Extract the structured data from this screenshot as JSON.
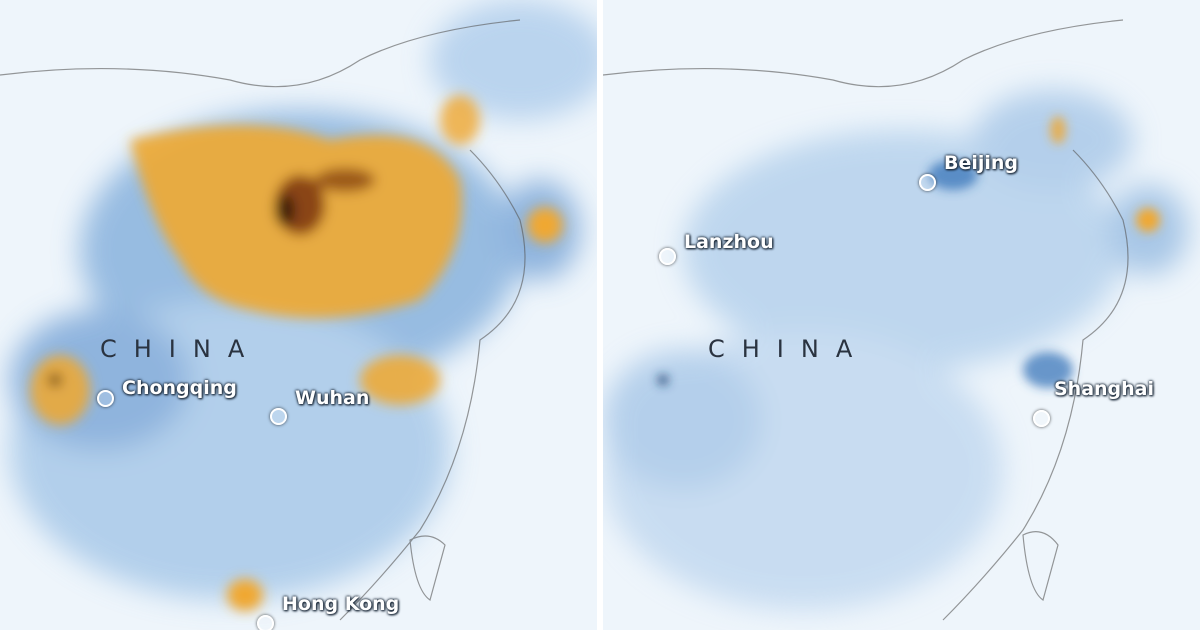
{
  "panels": [
    {
      "country_label": "CHINA",
      "cities": [
        {
          "name": "Chongqing"
        },
        {
          "name": "Wuhan"
        },
        {
          "name": "Hong Kong"
        }
      ]
    },
    {
      "country_label": "CHINA",
      "cities": [
        {
          "name": "Beijing"
        },
        {
          "name": "Lanzhou"
        },
        {
          "name": "Shanghai"
        }
      ]
    }
  ],
  "colors": {
    "background": "#eef5fb",
    "low_concentration": "#7aa9d9",
    "medium_concentration": "#2f6db5",
    "high_concentration": "#f0a830",
    "very_high_concentration": "#5a2a10"
  }
}
